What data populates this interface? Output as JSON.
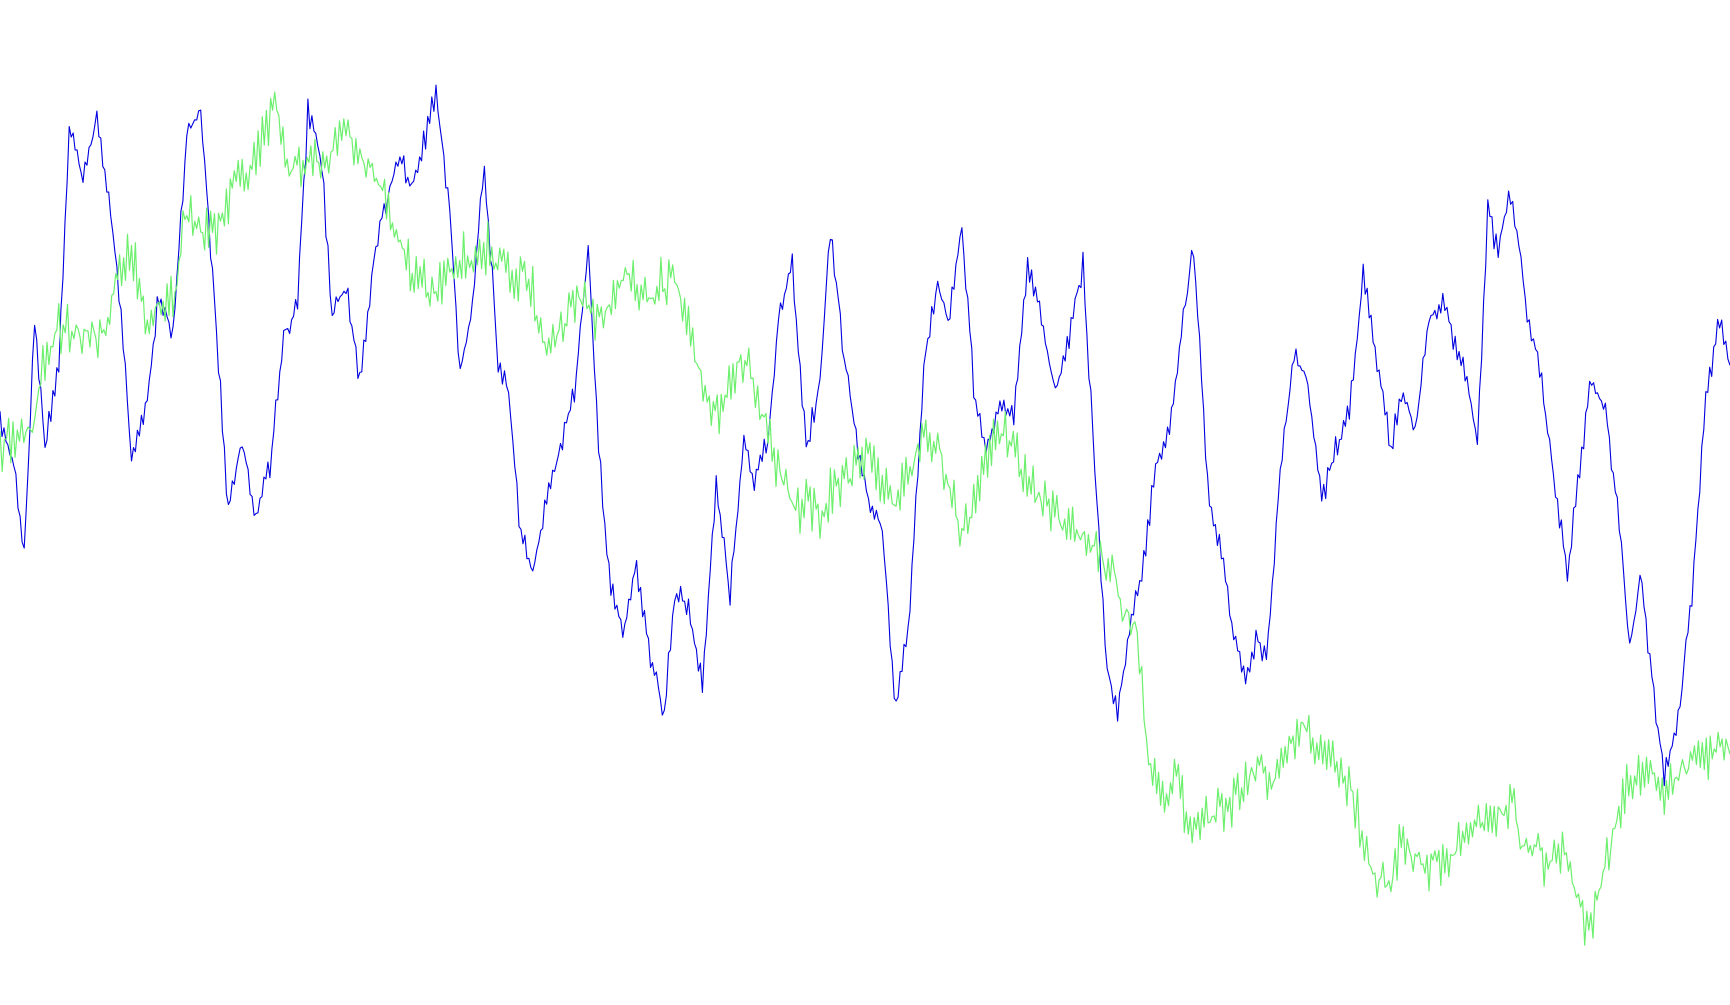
{
  "chart_data": {
    "type": "line",
    "title": "",
    "xlabel": "",
    "ylabel": "",
    "grid": false,
    "legend": "none",
    "x_range": [
      0,
      1000
    ],
    "y_range": [
      0,
      1000
    ],
    "series": [
      {
        "color": "#0000e0",
        "oscillation": 8,
        "points": [
          [
            0,
            590
          ],
          [
            8,
            540
          ],
          [
            14,
            440
          ],
          [
            20,
            700
          ],
          [
            26,
            560
          ],
          [
            34,
            650
          ],
          [
            40,
            910
          ],
          [
            48,
            850
          ],
          [
            56,
            920
          ],
          [
            64,
            820
          ],
          [
            70,
            700
          ],
          [
            76,
            550
          ],
          [
            84,
            600
          ],
          [
            92,
            730
          ],
          [
            100,
            680
          ],
          [
            108,
            900
          ],
          [
            116,
            930
          ],
          [
            124,
            720
          ],
          [
            132,
            490
          ],
          [
            140,
            570
          ],
          [
            148,
            480
          ],
          [
            156,
            540
          ],
          [
            164,
            680
          ],
          [
            172,
            720
          ],
          [
            178,
            930
          ],
          [
            186,
            870
          ],
          [
            192,
            700
          ],
          [
            200,
            740
          ],
          [
            208,
            630
          ],
          [
            216,
            760
          ],
          [
            222,
            820
          ],
          [
            230,
            880
          ],
          [
            238,
            850
          ],
          [
            246,
            900
          ],
          [
            252,
            950
          ],
          [
            260,
            820
          ],
          [
            266,
            640
          ],
          [
            272,
            700
          ],
          [
            280,
            870
          ],
          [
            288,
            650
          ],
          [
            294,
            620
          ],
          [
            300,
            480
          ],
          [
            308,
            420
          ],
          [
            316,
            510
          ],
          [
            324,
            560
          ],
          [
            332,
            620
          ],
          [
            340,
            780
          ],
          [
            346,
            560
          ],
          [
            352,
            420
          ],
          [
            360,
            360
          ],
          [
            368,
            430
          ],
          [
            376,
            330
          ],
          [
            384,
            270
          ],
          [
            390,
            400
          ],
          [
            398,
            390
          ],
          [
            406,
            300
          ],
          [
            414,
            520
          ],
          [
            422,
            400
          ],
          [
            430,
            570
          ],
          [
            436,
            520
          ],
          [
            444,
            570
          ],
          [
            450,
            700
          ],
          [
            458,
            760
          ],
          [
            466,
            560
          ],
          [
            474,
            630
          ],
          [
            480,
            800
          ],
          [
            488,
            660
          ],
          [
            496,
            560
          ],
          [
            502,
            500
          ],
          [
            510,
            470
          ],
          [
            518,
            270
          ],
          [
            526,
            380
          ],
          [
            534,
            650
          ],
          [
            542,
            740
          ],
          [
            548,
            700
          ],
          [
            556,
            800
          ],
          [
            564,
            600
          ],
          [
            570,
            560
          ],
          [
            578,
            610
          ],
          [
            586,
            590
          ],
          [
            594,
            760
          ],
          [
            602,
            700
          ],
          [
            610,
            620
          ],
          [
            618,
            680
          ],
          [
            626,
            760
          ],
          [
            634,
            500
          ],
          [
            640,
            320
          ],
          [
            646,
            270
          ],
          [
            654,
            380
          ],
          [
            660,
            420
          ],
          [
            668,
            540
          ],
          [
            676,
            580
          ],
          [
            684,
            700
          ],
          [
            690,
            780
          ],
          [
            698,
            520
          ],
          [
            706,
            440
          ],
          [
            712,
            370
          ],
          [
            720,
            310
          ],
          [
            726,
            350
          ],
          [
            732,
            330
          ],
          [
            740,
            530
          ],
          [
            748,
            660
          ],
          [
            756,
            630
          ],
          [
            764,
            500
          ],
          [
            772,
            560
          ],
          [
            780,
            600
          ],
          [
            788,
            750
          ],
          [
            796,
            650
          ],
          [
            804,
            560
          ],
          [
            810,
            620
          ],
          [
            818,
            580
          ],
          [
            826,
            700
          ],
          [
            834,
            720
          ],
          [
            840,
            680
          ],
          [
            848,
            640
          ],
          [
            854,
            560
          ],
          [
            860,
            820
          ],
          [
            866,
            770
          ],
          [
            872,
            840
          ],
          [
            878,
            780
          ],
          [
            884,
            690
          ],
          [
            890,
            650
          ],
          [
            898,
            530
          ],
          [
            906,
            420
          ],
          [
            912,
            520
          ],
          [
            920,
            640
          ],
          [
            928,
            600
          ],
          [
            936,
            480
          ],
          [
            942,
            340
          ],
          [
            948,
            420
          ],
          [
            956,
            290
          ],
          [
            962,
            200
          ],
          [
            970,
            260
          ],
          [
            978,
            400
          ],
          [
            986,
            610
          ],
          [
            994,
            700
          ],
          [
            1000,
            650
          ]
        ]
      },
      {
        "color": "#6cef6c",
        "oscillation": 16,
        "points": [
          [
            0,
            560
          ],
          [
            10,
            570
          ],
          [
            20,
            590
          ],
          [
            26,
            660
          ],
          [
            34,
            690
          ],
          [
            44,
            690
          ],
          [
            52,
            680
          ],
          [
            60,
            690
          ],
          [
            68,
            740
          ],
          [
            76,
            780
          ],
          [
            84,
            700
          ],
          [
            92,
            720
          ],
          [
            100,
            720
          ],
          [
            108,
            820
          ],
          [
            116,
            800
          ],
          [
            124,
            790
          ],
          [
            132,
            830
          ],
          [
            140,
            860
          ],
          [
            148,
            880
          ],
          [
            154,
            910
          ],
          [
            160,
            930
          ],
          [
            166,
            870
          ],
          [
            174,
            860
          ],
          [
            182,
            870
          ],
          [
            190,
            880
          ],
          [
            200,
            910
          ],
          [
            208,
            880
          ],
          [
            214,
            860
          ],
          [
            220,
            840
          ],
          [
            228,
            800
          ],
          [
            236,
            760
          ],
          [
            244,
            740
          ],
          [
            252,
            730
          ],
          [
            260,
            760
          ],
          [
            268,
            770
          ],
          [
            276,
            760
          ],
          [
            282,
            780
          ],
          [
            290,
            760
          ],
          [
            296,
            740
          ],
          [
            302,
            750
          ],
          [
            308,
            730
          ],
          [
            316,
            660
          ],
          [
            322,
            690
          ],
          [
            330,
            710
          ],
          [
            338,
            730
          ],
          [
            344,
            690
          ],
          [
            350,
            710
          ],
          [
            358,
            750
          ],
          [
            366,
            740
          ],
          [
            374,
            720
          ],
          [
            382,
            740
          ],
          [
            390,
            740
          ],
          [
            398,
            700
          ],
          [
            404,
            640
          ],
          [
            410,
            610
          ],
          [
            418,
            600
          ],
          [
            426,
            650
          ],
          [
            434,
            650
          ],
          [
            438,
            620
          ],
          [
            444,
            570
          ],
          [
            452,
            520
          ],
          [
            460,
            490
          ],
          [
            466,
            500
          ],
          [
            474,
            480
          ],
          [
            480,
            510
          ],
          [
            488,
            520
          ],
          [
            496,
            540
          ],
          [
            504,
            550
          ],
          [
            510,
            520
          ],
          [
            518,
            500
          ],
          [
            526,
            540
          ],
          [
            534,
            570
          ],
          [
            542,
            560
          ],
          [
            548,
            520
          ],
          [
            556,
            470
          ],
          [
            564,
            500
          ],
          [
            572,
            560
          ],
          [
            580,
            580
          ],
          [
            588,
            550
          ],
          [
            596,
            520
          ],
          [
            604,
            500
          ],
          [
            612,
            480
          ],
          [
            620,
            470
          ],
          [
            628,
            460
          ],
          [
            636,
            440
          ],
          [
            644,
            420
          ],
          [
            650,
            380
          ],
          [
            656,
            370
          ],
          [
            660,
            300
          ],
          [
            664,
            220
          ],
          [
            672,
            180
          ],
          [
            680,
            200
          ],
          [
            688,
            140
          ],
          [
            696,
            150
          ],
          [
            704,
            160
          ],
          [
            712,
            170
          ],
          [
            720,
            200
          ],
          [
            728,
            210
          ],
          [
            736,
            190
          ],
          [
            744,
            230
          ],
          [
            752,
            260
          ],
          [
            760,
            240
          ],
          [
            768,
            230
          ],
          [
            774,
            210
          ],
          [
            782,
            180
          ],
          [
            786,
            150
          ],
          [
            790,
            120
          ],
          [
            796,
            90
          ],
          [
            804,
            80
          ],
          [
            810,
            130
          ],
          [
            818,
            110
          ],
          [
            826,
            100
          ],
          [
            834,
            110
          ],
          [
            842,
            120
          ],
          [
            850,
            140
          ],
          [
            858,
            150
          ],
          [
            866,
            160
          ],
          [
            874,
            170
          ],
          [
            880,
            130
          ],
          [
            888,
            120
          ],
          [
            896,
            100
          ],
          [
            902,
            120
          ],
          [
            910,
            80
          ],
          [
            916,
            40
          ],
          [
            922,
            50
          ],
          [
            930,
            120
          ],
          [
            938,
            180
          ],
          [
            946,
            200
          ],
          [
            954,
            210
          ],
          [
            962,
            180
          ],
          [
            968,
            200
          ],
          [
            976,
            210
          ],
          [
            984,
            220
          ],
          [
            992,
            230
          ],
          [
            1000,
            225
          ]
        ]
      }
    ]
  }
}
